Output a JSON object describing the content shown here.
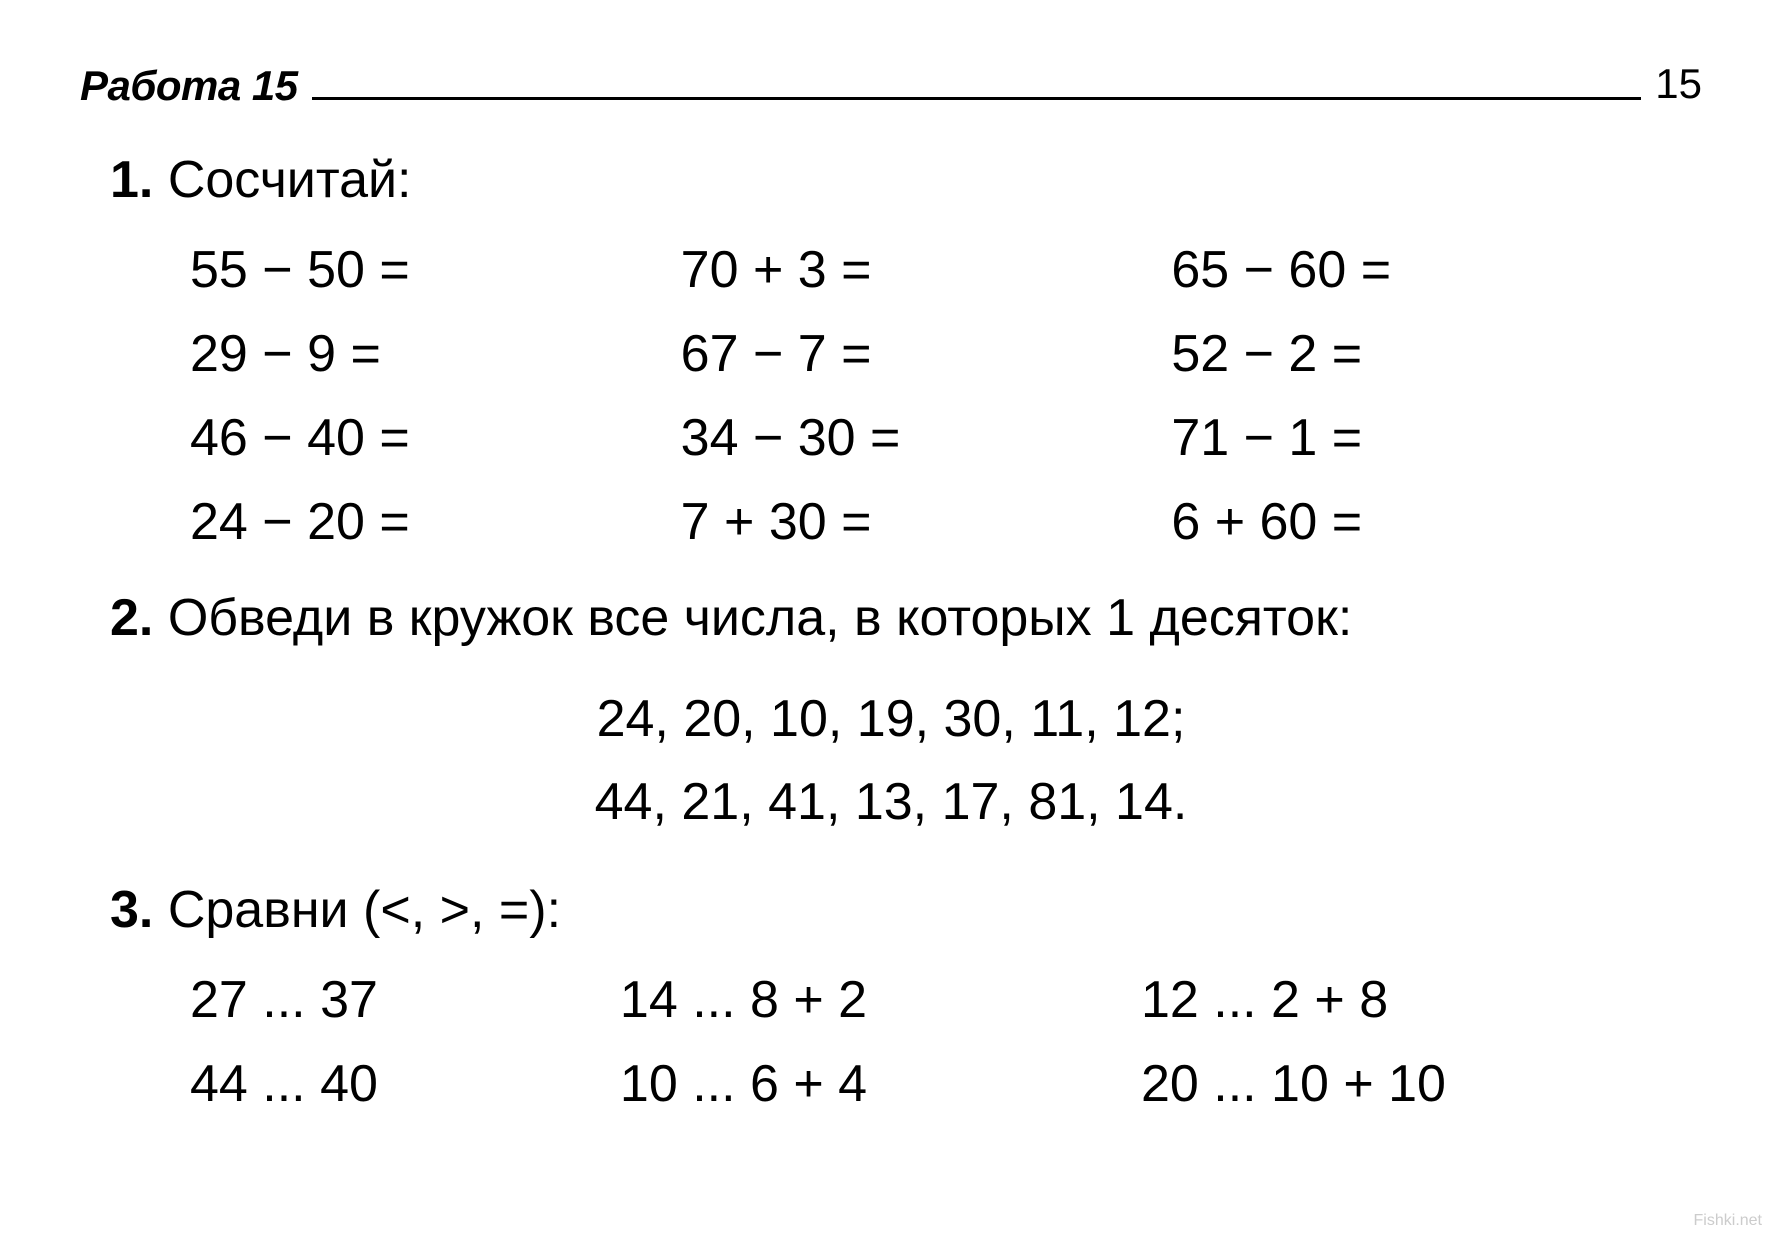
{
  "header": {
    "title": "Работа 15",
    "page_number": "15"
  },
  "task1": {
    "number": "1.",
    "title": " Сосчитай:",
    "rows": [
      [
        "55 − 50 =",
        "70 + 3 =",
        "65 − 60 ="
      ],
      [
        "29 − 9 =",
        "67 − 7 =",
        "52 − 2 ="
      ],
      [
        "46 − 40 =",
        "34 − 30 =",
        "71 − 1 ="
      ],
      [
        "24 − 20 =",
        "7 + 30 =",
        "6 + 60 ="
      ]
    ]
  },
  "task2": {
    "number": "2.",
    "title": " Обведи в кружок все числа, в которых 1 десяток:",
    "line1": "24, 20, 10, 19, 30, 11, 12;",
    "line2": "44, 21, 41, 13, 17, 81, 14."
  },
  "task3": {
    "number": "3.",
    "title": " Сравни (<, >, =):",
    "rows": [
      [
        "27 ... 37",
        "14 ... 8 + 2",
        "12 ... 2 + 8"
      ],
      [
        "44 ... 40",
        "10 ... 6 + 4",
        "20 ... 10 + 10"
      ]
    ]
  },
  "watermark": "Fishki.net",
  "styling": {
    "background_color": "#ffffff",
    "text_color": "#000000",
    "body_fontsize": 52,
    "header_fontsize": 42,
    "task_number_weight": 900,
    "header_title_style": "italic bold",
    "line_color": "#000000",
    "font_family": "Arial, Helvetica, sans-serif"
  }
}
